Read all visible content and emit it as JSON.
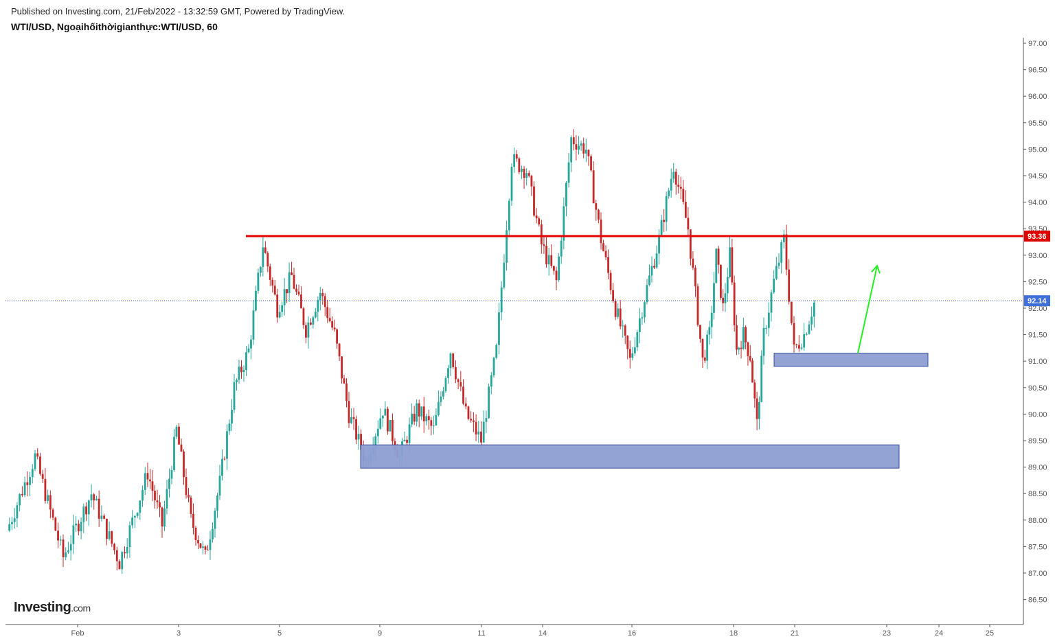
{
  "header": {
    "published": "Published on Investing.com, 21/Feb/2022 - 13:32:59 GMT, Powered by TradingView.",
    "symbol": "WTI/USD, Ngoạihốithờigianthực:WTI/USD, 60"
  },
  "logo": {
    "main": "Investing",
    "suffix": ".com"
  },
  "colors": {
    "up": "#26a69a",
    "down": "#c62828",
    "resistance": "#e60000",
    "price_line": "#1e3cbe",
    "zone": "#8c9ed2",
    "arrow": "#22ee22"
  },
  "chart_data": {
    "type": "candlestick",
    "title": "WTI/USD, Ngoạihốithờigianthực:WTI/USD, 60",
    "timeframe": "60",
    "x_ticks": [
      "Feb",
      "3",
      "5",
      "9",
      "11",
      "14",
      "16",
      "18",
      "21",
      "23",
      "24",
      "25"
    ],
    "y_ticks": [
      "86.50",
      "87.00",
      "87.50",
      "88.00",
      "88.50",
      "89.00",
      "89.50",
      "90.00",
      "90.50",
      "91.00",
      "91.50",
      "92.00",
      "92.50",
      "93.00",
      "93.50",
      "94.00",
      "94.50",
      "95.00",
      "95.50",
      "96.00",
      "96.50",
      "97.00"
    ],
    "ylim": [
      86.3,
      97.1
    ],
    "price_path": [
      {
        "date": "Feb",
        "price": 87.8
      },
      {
        "date": "Feb",
        "price": 89.2,
        "note": "early Feb 1 spike"
      },
      {
        "date": "Feb",
        "price": 87.3
      },
      {
        "date": "Feb",
        "price": 88.5
      },
      {
        "date": "Feb",
        "price": 87.2
      },
      {
        "date": "3",
        "price": 88.9
      },
      {
        "date": "3",
        "price": 87.9
      },
      {
        "date": "3",
        "price": 89.7
      },
      {
        "date": "3",
        "price": 88.0
      },
      {
        "date": "3",
        "price": 87.3
      },
      {
        "date": "3",
        "price": 88.7
      },
      {
        "date": "3",
        "price": 90.5
      },
      {
        "date": "5",
        "price": 91.2
      },
      {
        "date": "5",
        "price": 93.2
      },
      {
        "date": "5",
        "price": 92.0
      },
      {
        "date": "5",
        "price": 92.6
      },
      {
        "date": "5",
        "price": 91.6
      },
      {
        "date": "5",
        "price": 92.3
      },
      {
        "date": "5",
        "price": 91.5
      },
      {
        "date": "9",
        "price": 90.0
      },
      {
        "date": "9",
        "price": 89.1
      },
      {
        "date": "9",
        "price": 90.1
      },
      {
        "date": "9",
        "price": 89.2
      },
      {
        "date": "9",
        "price": 90.1
      },
      {
        "date": "9",
        "price": 89.7
      },
      {
        "date": "11",
        "price": 91.2
      },
      {
        "date": "11",
        "price": 90.0
      },
      {
        "date": "11",
        "price": 89.5
      },
      {
        "date": "11",
        "price": 91.2
      },
      {
        "date": "14",
        "price": 94.8
      },
      {
        "date": "14",
        "price": 94.6
      },
      {
        "date": "14",
        "price": 93.2
      },
      {
        "date": "14",
        "price": 92.5
      },
      {
        "date": "14",
        "price": 95.2
      },
      {
        "date": "14",
        "price": 95.0
      },
      {
        "date": "16",
        "price": 93.3
      },
      {
        "date": "16",
        "price": 92.0
      },
      {
        "date": "16",
        "price": 91.0
      },
      {
        "date": "16",
        "price": 92.2
      },
      {
        "date": "16",
        "price": 93.3
      },
      {
        "date": "16",
        "price": 94.7
      },
      {
        "date": "16",
        "price": 93.5
      },
      {
        "date": "18",
        "price": 91.0
      },
      {
        "date": "18",
        "price": 91.5
      },
      {
        "date": "18",
        "price": 93.0
      },
      {
        "date": "18",
        "price": 92.0
      },
      {
        "date": "18",
        "price": 93.0
      },
      {
        "date": "18",
        "price": 91.2
      },
      {
        "date": "18",
        "price": 91.5
      },
      {
        "date": "18",
        "price": 91.1
      },
      {
        "date": "18",
        "price": 89.8
      },
      {
        "date": "21",
        "price": 91.5
      },
      {
        "date": "21",
        "price": 92.5
      },
      {
        "date": "21",
        "price": 93.3
      },
      {
        "date": "21",
        "price": 91.2
      },
      {
        "date": "21",
        "price": 91.5
      },
      {
        "date": "21",
        "price": 92.1
      }
    ],
    "last_price": 92.14,
    "last_price_label": "92.14",
    "resistance": {
      "value": 93.36,
      "label": "93.36",
      "from_date": "4",
      "to_date": "end"
    },
    "zones": [
      {
        "name": "support zone lower",
        "top": 89.42,
        "bottom": 88.98,
        "from_date": "8",
        "to_date": "23"
      },
      {
        "name": "support zone upper",
        "top": 91.15,
        "bottom": 90.9,
        "from_date": "20",
        "to_date": "23"
      }
    ],
    "arrow": {
      "from_date": "22",
      "from_price": 91.15,
      "to_date": "22",
      "to_price": 92.8,
      "direction": "up"
    },
    "grid": false,
    "legend": "none"
  }
}
